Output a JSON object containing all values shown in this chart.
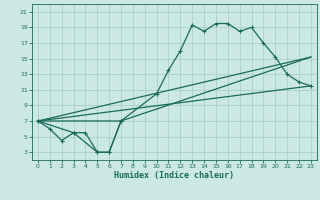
{
  "title": "",
  "xlabel": "Humidex (Indice chaleur)",
  "xlim": [
    -0.5,
    23.5
  ],
  "ylim": [
    2,
    22
  ],
  "xticks": [
    0,
    1,
    2,
    3,
    4,
    5,
    6,
    7,
    8,
    9,
    10,
    11,
    12,
    13,
    14,
    15,
    16,
    17,
    18,
    19,
    20,
    21,
    22,
    23
  ],
  "yticks": [
    3,
    5,
    7,
    9,
    11,
    13,
    15,
    17,
    19,
    21
  ],
  "bg_color": "#cce8e4",
  "grid_color": "#aad0cc",
  "line_color": "#1a6b5a",
  "curve1_x": [
    0,
    1,
    2,
    3,
    4,
    5,
    6,
    7
  ],
  "curve1_y": [
    7,
    6,
    4.5,
    5.5,
    5.5,
    3,
    3,
    7
  ],
  "curve2_x": [
    0,
    3,
    5,
    6,
    7,
    10,
    11,
    12,
    13,
    14,
    15,
    16,
    17,
    18,
    19,
    20,
    21,
    22,
    23
  ],
  "curve2_y": [
    7,
    5.5,
    3,
    3,
    7,
    10.5,
    13.5,
    16,
    19.3,
    18.5,
    19.5,
    19.5,
    18.5,
    19,
    17,
    15.2,
    13,
    12,
    11.5
  ],
  "line3_x": [
    0,
    23
  ],
  "line3_y": [
    7,
    11.5
  ],
  "line4_x": [
    0,
    23
  ],
  "line4_y": [
    7,
    15.2
  ],
  "line5_x": [
    0,
    7,
    23
  ],
  "line5_y": [
    7,
    7,
    15.2
  ]
}
